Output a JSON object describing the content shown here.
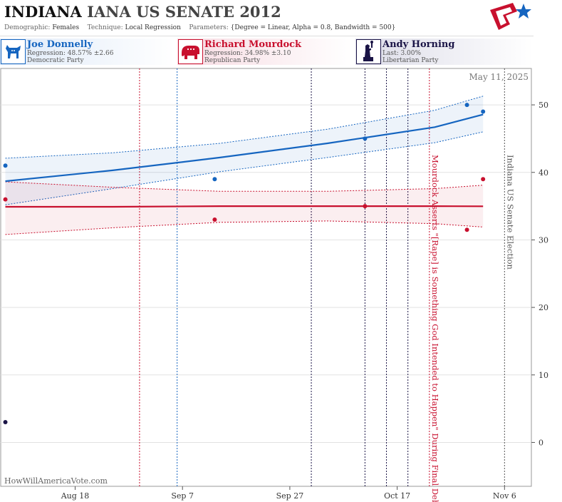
{
  "header": {
    "title_state": "INDIANA",
    "title_rest": "IANA US SENATE 2012",
    "demographic_label": "Demographic:",
    "demographic_value": "Females",
    "technique_label": "Technique:",
    "technique_value": "Local Regression",
    "parameters_label": "Parameters:",
    "parameters_value": "{Degree = Linear, Alpha = 0.8, Bandwidth = 500}"
  },
  "candidates": [
    {
      "name": "Joe Donnelly",
      "line1": "Regression: 48.57% ±2.66",
      "line2": "Democratic Party",
      "color": "#1565c0",
      "icon": "donkey-icon"
    },
    {
      "name": "Richard Mourdock",
      "line1": "Regression: 34.98% ±3.10",
      "line2": "Republican Party",
      "color": "#c8102e",
      "icon": "elephant-icon"
    },
    {
      "name": "Andy Horning",
      "line1": "Last: 3.00%",
      "line2": "Libertarian Party",
      "color": "#1a1446",
      "icon": "statue-of-liberty-icon"
    }
  ],
  "chart_data": {
    "type": "line",
    "date_label": "May 11, 2025",
    "watermark": "HowWillAmericaVote.com",
    "x_ticks": [
      "Aug 18",
      "Sep 7",
      "Sep 27",
      "Oct 17",
      "Nov 6"
    ],
    "x_tick_dates": [
      "2012-08-18",
      "2012-09-07",
      "2012-09-27",
      "2012-10-17",
      "2012-11-06"
    ],
    "x_range": [
      "2012-08-04",
      "2012-11-11"
    ],
    "y_ticks": [
      0,
      10,
      20,
      30,
      40,
      50
    ],
    "ylim": [
      -6.5,
      55.5
    ],
    "grid": true,
    "series": [
      {
        "name": "Joe Donnelly",
        "color": "#1565c0",
        "points": [
          [
            "2012-08-05",
            41
          ],
          [
            "2012-09-13",
            39
          ],
          [
            "2012-10-11",
            45
          ],
          [
            "2012-10-30",
            50
          ],
          [
            "2012-11-02",
            49
          ]
        ],
        "trend": [
          [
            "2012-08-05",
            38.7
          ],
          [
            "2012-08-25",
            40.3
          ],
          [
            "2012-09-14",
            42.2
          ],
          [
            "2012-10-04",
            44.3
          ],
          [
            "2012-10-24",
            46.7
          ],
          [
            "2012-11-02",
            48.57
          ]
        ],
        "band_upper": [
          [
            "2012-08-05",
            42.1
          ],
          [
            "2012-08-25",
            42.9
          ],
          [
            "2012-09-14",
            44.3
          ],
          [
            "2012-10-04",
            46.4
          ],
          [
            "2012-10-24",
            49.2
          ],
          [
            "2012-11-02",
            51.3
          ]
        ],
        "band_lower": [
          [
            "2012-08-05",
            35.2
          ],
          [
            "2012-08-25",
            37.6
          ],
          [
            "2012-09-14",
            40.1
          ],
          [
            "2012-10-04",
            42.2
          ],
          [
            "2012-10-24",
            44.4
          ],
          [
            "2012-11-02",
            46.0
          ]
        ]
      },
      {
        "name": "Richard Mourdock",
        "color": "#c8102e",
        "points": [
          [
            "2012-08-05",
            36
          ],
          [
            "2012-09-13",
            33
          ],
          [
            "2012-10-11",
            35
          ],
          [
            "2012-10-30",
            31.5
          ],
          [
            "2012-11-02",
            39
          ]
        ],
        "trend": [
          [
            "2012-08-05",
            34.9
          ],
          [
            "2012-08-25",
            34.9
          ],
          [
            "2012-09-14",
            35.0
          ],
          [
            "2012-10-04",
            35.0
          ],
          [
            "2012-10-24",
            35.0
          ],
          [
            "2012-11-02",
            34.98
          ]
        ],
        "band_upper": [
          [
            "2012-08-05",
            38.6
          ],
          [
            "2012-08-25",
            37.8
          ],
          [
            "2012-09-14",
            37.2
          ],
          [
            "2012-10-04",
            37.2
          ],
          [
            "2012-10-24",
            37.6
          ],
          [
            "2012-11-02",
            38.1
          ]
        ],
        "band_lower": [
          [
            "2012-08-05",
            30.8
          ],
          [
            "2012-08-25",
            31.8
          ],
          [
            "2012-09-14",
            32.6
          ],
          [
            "2012-10-04",
            32.8
          ],
          [
            "2012-10-24",
            32.4
          ],
          [
            "2012-11-02",
            31.9
          ]
        ]
      },
      {
        "name": "Andy Horning",
        "color": "#1a1446",
        "points": [
          [
            "2012-08-05",
            3
          ]
        ]
      }
    ],
    "event_lines": [
      {
        "date": "2012-08-30",
        "color": "#c8102e"
      },
      {
        "date": "2012-09-06",
        "color": "#1565c0"
      },
      {
        "date": "2012-10-01",
        "color": "#1a1446"
      },
      {
        "date": "2012-10-11",
        "color": "#1a1446"
      },
      {
        "date": "2012-10-15",
        "color": "#1a1446"
      },
      {
        "date": "2012-10-19",
        "color": "#1a1446"
      },
      {
        "date": "2012-10-23",
        "color": "#c8102e",
        "label": "Mourdock Asserts \"[Rape] is Something God Intended to Happen\" During Final Debate"
      },
      {
        "date": "2012-11-06",
        "color": "#555555",
        "label": "Indiana US Senate Election"
      }
    ]
  }
}
